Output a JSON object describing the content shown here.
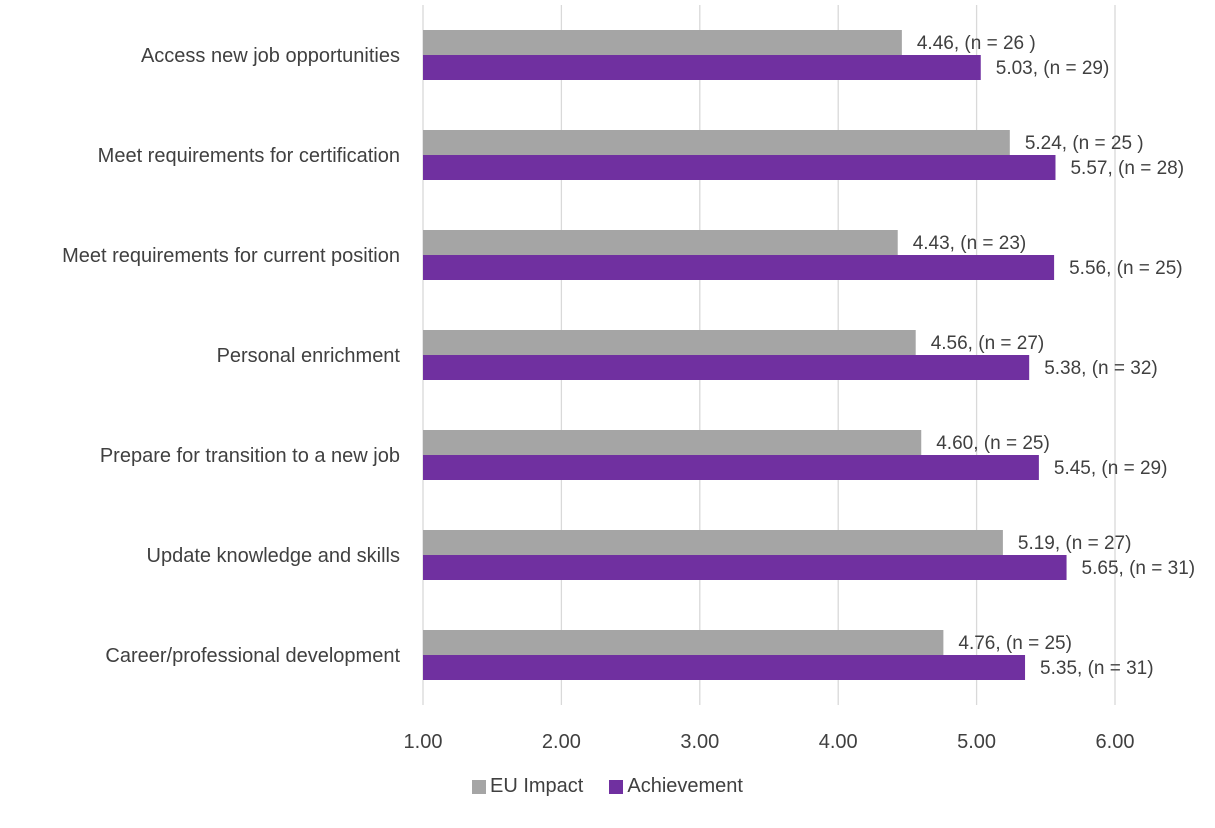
{
  "chart_data": {
    "type": "bar",
    "orientation": "horizontal",
    "categories": [
      "Access new job opportunities",
      "Meet requirements for certification",
      "Meet requirements for current position",
      "Personal enrichment",
      "Prepare for transition to a new job",
      "Update knowledge and skills",
      "Career/professional development"
    ],
    "series": [
      {
        "name": "EU Impact",
        "color": "#a5a5a5",
        "values": [
          4.46,
          5.24,
          4.43,
          4.56,
          4.6,
          5.19,
          4.76
        ],
        "labels": [
          "4.46, (n = 26 )",
          "5.24, (n = 25 )",
          "4.43, (n = 23)",
          "4.56, (n = 27)",
          "4.60, (n = 25)",
          "5.19, (n = 27)",
          "4.76, (n = 25)"
        ]
      },
      {
        "name": "Achievement",
        "color": "#7030a0",
        "values": [
          5.03,
          5.57,
          5.56,
          5.38,
          5.45,
          5.65,
          5.35
        ],
        "labels": [
          "5.03, (n = 29)",
          "5.57, (n = 28)",
          "5.56, (n = 25)",
          "5.38, (n = 32)",
          "5.45, (n = 29)",
          "5.65, (n = 31)",
          "5.35, (n = 31)"
        ]
      }
    ],
    "xlim": [
      1,
      6
    ],
    "ticks": [
      "1.00",
      "2.00",
      "3.00",
      "4.00",
      "5.00",
      "6.00"
    ],
    "tick_values": [
      1,
      2,
      3,
      4,
      5,
      6
    ],
    "grid": true,
    "legend": "bottom",
    "title": "",
    "xlabel": "",
    "ylabel": ""
  }
}
